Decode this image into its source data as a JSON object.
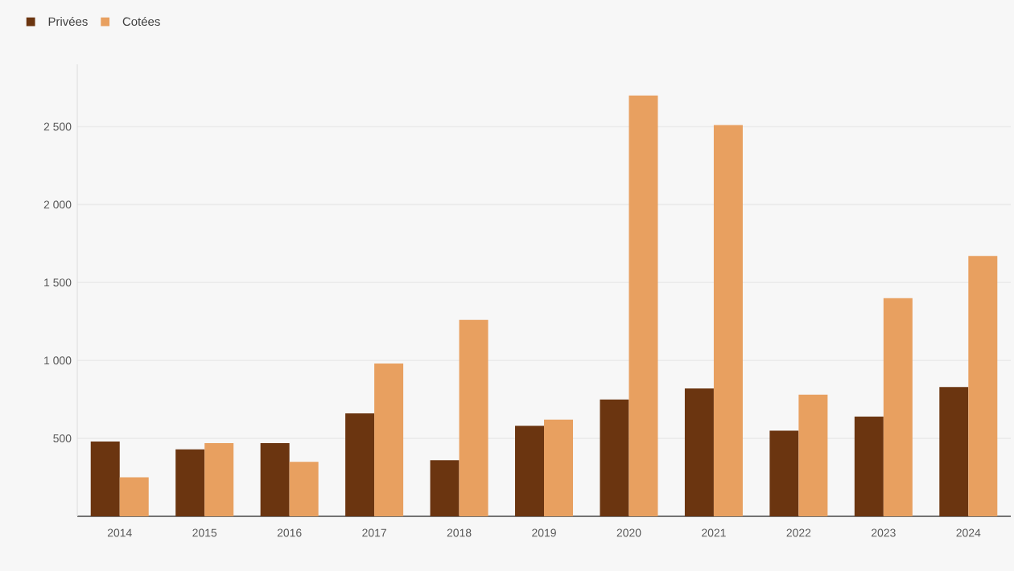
{
  "chart_data": {
    "type": "bar",
    "categories": [
      "2014",
      "2015",
      "2016",
      "2017",
      "2018",
      "2019",
      "2020",
      "2021",
      "2022",
      "2023",
      "2024"
    ],
    "series": [
      {
        "name": "Privées",
        "color": "#6b3510",
        "values": [
          480,
          430,
          470,
          660,
          360,
          580,
          750,
          820,
          550,
          640,
          830
        ]
      },
      {
        "name": "Cotées",
        "color": "#e8a060",
        "values": [
          250,
          470,
          350,
          980,
          1260,
          620,
          2700,
          2510,
          780,
          1400,
          1670
        ]
      }
    ],
    "ylim": [
      0,
      2900
    ],
    "yticks": [
      {
        "value": 500,
        "label": "500"
      },
      {
        "value": 1000,
        "label": "1 000"
      },
      {
        "value": 1500,
        "label": "1 500"
      },
      {
        "value": 2000,
        "label": "2 000"
      },
      {
        "value": 2500,
        "label": "2 500"
      }
    ],
    "grid": "y",
    "legend": "top left"
  }
}
